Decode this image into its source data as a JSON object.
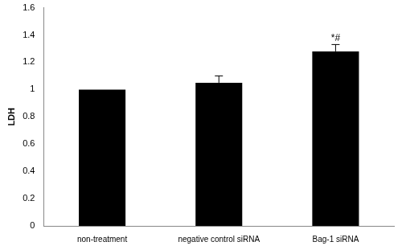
{
  "chart_data": {
    "type": "bar",
    "y_label": "LDH",
    "categories": [
      "non-treatment",
      "negative control siRNA",
      "Bag-1 siRNA"
    ],
    "values": [
      1.0,
      1.05,
      1.28
    ],
    "errors": [
      0,
      0.05,
      0.05
    ],
    "color": "#000000",
    "ylim": [
      0,
      1.6
    ],
    "yticks": [
      0,
      0.2,
      0.4,
      0.6,
      0.8,
      1,
      1.2,
      1.4,
      1.6
    ],
    "grid": false,
    "annotations": [
      {
        "category": "Bag-1 siRNA",
        "text": "*#"
      }
    ]
  }
}
